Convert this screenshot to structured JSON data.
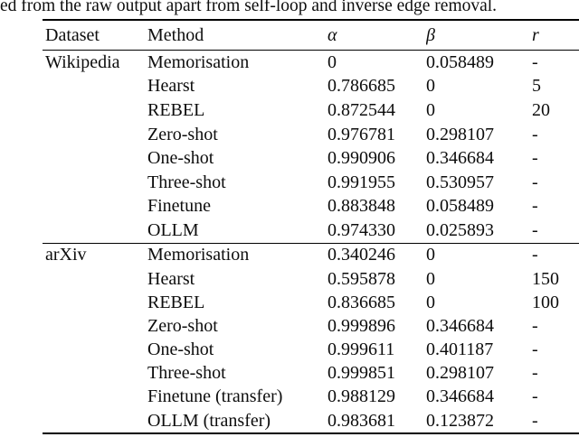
{
  "caption": "ed from the raw output apart from self-loop and inverse edge removal.",
  "colors": {
    "background": "#ffffff",
    "text": "#0d0d0d",
    "rule": "#000000"
  },
  "table": {
    "columns": [
      "Dataset",
      "Method",
      "α",
      "β",
      "r"
    ],
    "sections": [
      {
        "dataset": "Wikipedia",
        "rows": [
          {
            "method": "Memorisation",
            "alpha": "0",
            "beta": "0.058489",
            "r": "-"
          },
          {
            "method": "Hearst",
            "alpha": "0.786685",
            "beta": "0",
            "r": "5"
          },
          {
            "method": "REBEL",
            "alpha": "0.872544",
            "beta": "0",
            "r": "20"
          },
          {
            "method": "Zero-shot",
            "alpha": "0.976781",
            "beta": "0.298107",
            "r": "-"
          },
          {
            "method": "One-shot",
            "alpha": "0.990906",
            "beta": "0.346684",
            "r": "-"
          },
          {
            "method": "Three-shot",
            "alpha": "0.991955",
            "beta": "0.530957",
            "r": "-"
          },
          {
            "method": "Finetune",
            "alpha": "0.883848",
            "beta": "0.058489",
            "r": "-"
          },
          {
            "method": "OLLM",
            "alpha": "0.974330",
            "beta": "0.025893",
            "r": "-"
          }
        ]
      },
      {
        "dataset": "arXiv",
        "rows": [
          {
            "method": "Memorisation",
            "alpha": "0.340246",
            "beta": "0",
            "r": "-"
          },
          {
            "method": "Hearst",
            "alpha": "0.595878",
            "beta": "0",
            "r": "150"
          },
          {
            "method": "REBEL",
            "alpha": "0.836685",
            "beta": "0",
            "r": "100"
          },
          {
            "method": "Zero-shot",
            "alpha": "0.999896",
            "beta": "0.346684",
            "r": "-"
          },
          {
            "method": "One-shot",
            "alpha": "0.999611",
            "beta": "0.401187",
            "r": "-"
          },
          {
            "method": "Three-shot",
            "alpha": "0.999851",
            "beta": "0.298107",
            "r": "-"
          },
          {
            "method": "Finetune (transfer)",
            "alpha": "0.988129",
            "beta": "0.346684",
            "r": "-"
          },
          {
            "method": "OLLM (transfer)",
            "alpha": "0.983681",
            "beta": "0.123872",
            "r": "-"
          }
        ]
      }
    ]
  }
}
